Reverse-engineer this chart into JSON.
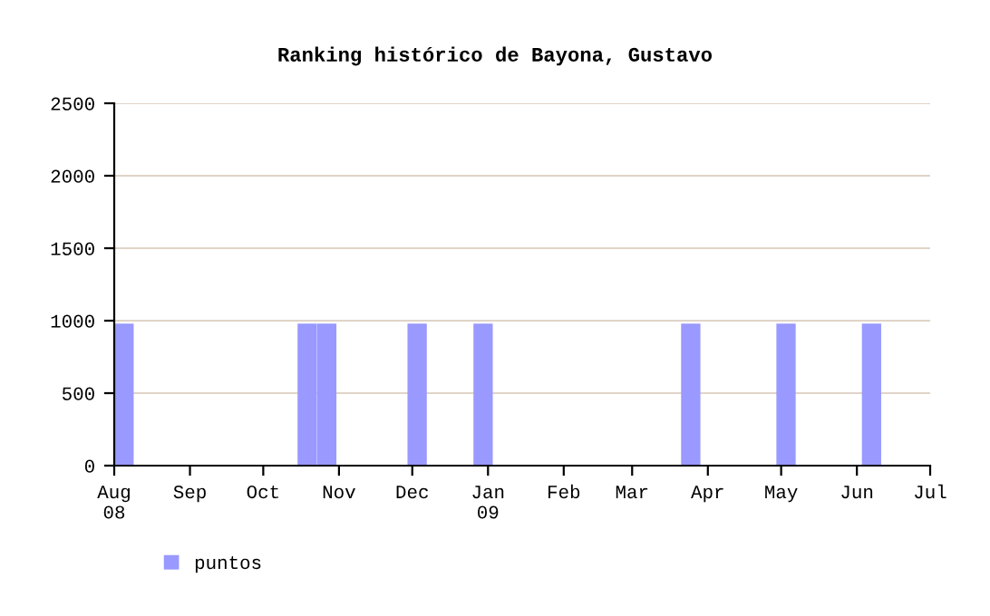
{
  "chart_data": {
    "type": "bar",
    "title": "Ranking histórico de Bayona, Gustavo",
    "x": [
      "2008-08-05",
      "2008-10-19",
      "2008-10-27",
      "2008-12-03",
      "2008-12-30",
      "2009-03-25",
      "2009-05-03",
      "2009-06-07"
    ],
    "series": [
      {
        "name": "puntos",
        "color": "#9999ff",
        "values": [
          980,
          980,
          980,
          980,
          980,
          980,
          980,
          980
        ]
      }
    ],
    "ylim": [
      0,
      2500
    ],
    "yticks": [
      0,
      500,
      1000,
      1500,
      2000,
      2500
    ],
    "xlim": [
      "2008-08-01",
      "2009-07-01"
    ],
    "xticks": [
      {
        "value": "2008-08-01",
        "label": "Aug\n08"
      },
      {
        "value": "2008-09-01",
        "label": "Sep"
      },
      {
        "value": "2008-10-01",
        "label": "Oct"
      },
      {
        "value": "2008-11-01",
        "label": "Nov"
      },
      {
        "value": "2008-12-01",
        "label": "Dec"
      },
      {
        "value": "2009-01-01",
        "label": "Jan\n09"
      },
      {
        "value": "2009-02-01",
        "label": "Feb"
      },
      {
        "value": "2009-03-01",
        "label": "Mar"
      },
      {
        "value": "2009-04-01",
        "label": "Apr"
      },
      {
        "value": "2009-05-01",
        "label": "May"
      },
      {
        "value": "2009-06-01",
        "label": "Jun"
      },
      {
        "value": "2009-07-01",
        "label": "Jul"
      }
    ],
    "grid": "y",
    "legend": "bottom left"
  }
}
